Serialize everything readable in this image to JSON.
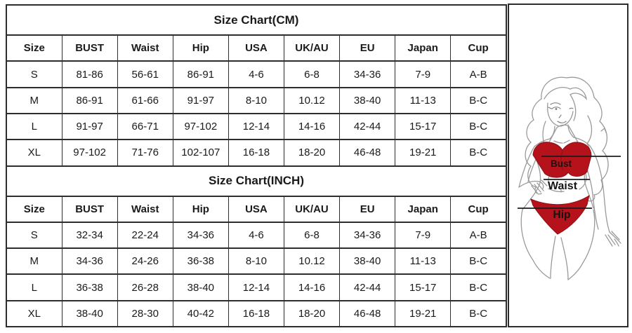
{
  "page": {
    "background": "#ffffff",
    "border_color": "#2d2d2d",
    "text_color": "#1a1a1a"
  },
  "tables": [
    {
      "title": "Size Chart(CM)",
      "headers": [
        "Size",
        "BUST",
        "Waist",
        "Hip",
        "USA",
        "UK/AU",
        "EU",
        "Japan",
        "Cup"
      ],
      "rows": [
        [
          "S",
          "81-86",
          "56-61",
          "86-91",
          "4-6",
          "6-8",
          "34-36",
          "7-9",
          "A-B"
        ],
        [
          "M",
          "86-91",
          "61-66",
          "91-97",
          "8-10",
          "10.12",
          "38-40",
          "11-13",
          "B-C"
        ],
        [
          "L",
          "91-97",
          "66-71",
          "97-102",
          "12-14",
          "14-16",
          "42-44",
          "15-17",
          "B-C"
        ],
        [
          "XL",
          "97-102",
          "71-76",
          "102-107",
          "16-18",
          "18-20",
          "46-48",
          "19-21",
          "B-C"
        ]
      ]
    },
    {
      "title": "Size Chart(INCH)",
      "headers": [
        "Size",
        "BUST",
        "Waist",
        "Hip",
        "USA",
        "UK/AU",
        "EU",
        "Japan",
        "Cup"
      ],
      "rows": [
        [
          "S",
          "32-34",
          "22-24",
          "34-36",
          "4-6",
          "6-8",
          "34-36",
          "7-9",
          "A-B"
        ],
        [
          "M",
          "34-36",
          "24-26",
          "36-38",
          "8-10",
          "10.12",
          "38-40",
          "11-13",
          "B-C"
        ],
        [
          "L",
          "36-38",
          "26-28",
          "38-40",
          "12-14",
          "14-16",
          "42-44",
          "15-17",
          "B-C"
        ],
        [
          "XL",
          "38-40",
          "28-30",
          "40-42",
          "16-18",
          "18-20",
          "46-48",
          "19-21",
          "B-C"
        ]
      ]
    }
  ],
  "figure": {
    "labels": {
      "bust": "Bust",
      "waist": "Waist",
      "hip": "Hip"
    },
    "bikini_color": "#b5121b",
    "bikini_stroke": "#8c1016",
    "outline_color": "#9a9a9a",
    "detail_color": "#787878",
    "measure_line_color": "#1b1b1b",
    "label_color": "#141414"
  }
}
